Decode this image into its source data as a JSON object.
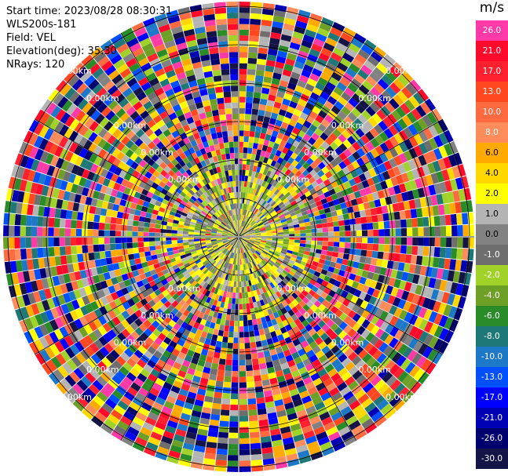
{
  "header": {
    "start_time": "Start time: 2023/08/28 08:30:31",
    "site": "WLS200s-181",
    "field": "Field: VEL",
    "elevation": "Elevation(deg): 35.30",
    "nrays": "NRays: 120"
  },
  "colorbar": {
    "unit": "m/s",
    "levels": [
      {
        "label": "26.0",
        "color": "#ff3aa8"
      },
      {
        "label": "21.0",
        "color": "#ff0a2a"
      },
      {
        "label": "17.0",
        "color": "#ff2030"
      },
      {
        "label": "13.0",
        "color": "#ff4820"
      },
      {
        "label": "10.0",
        "color": "#ff6a40"
      },
      {
        "label": "8.0",
        "color": "#ff8c5a"
      },
      {
        "label": "6.0",
        "color": "#ffaa00"
      },
      {
        "label": "4.0",
        "color": "#ffd800"
      },
      {
        "label": "2.0",
        "color": "#ffff00"
      },
      {
        "label": "1.0",
        "color": "#b4b4b4"
      },
      {
        "label": "0.0",
        "color": "#828282"
      },
      {
        "label": "-1.0",
        "color": "#6e6e6e"
      },
      {
        "label": "-2.0",
        "color": "#a0d22a"
      },
      {
        "label": "-4.0",
        "color": "#6ea028"
      },
      {
        "label": "-6.0",
        "color": "#2a8c28"
      },
      {
        "label": "-8.0",
        "color": "#1e7878"
      },
      {
        "label": "-10.0",
        "color": "#1e78c8"
      },
      {
        "label": "-13.0",
        "color": "#0050ff"
      },
      {
        "label": "-17.0",
        "color": "#0000ff"
      },
      {
        "label": "-21.0",
        "color": "#0000b4"
      },
      {
        "label": "-26.0",
        "color": "#00006e"
      },
      {
        "label": "-30.0",
        "color": "#141446"
      }
    ]
  },
  "chart_data": {
    "type": "heatmap",
    "title": "",
    "field": "VEL",
    "elevation_deg": 35.3,
    "nrays": 120,
    "range_rings_km": [
      {
        "label": "0.00km"
      },
      {
        "label": "0.00km"
      },
      {
        "label": "0.00km"
      },
      {
        "label": "0.00km"
      },
      {
        "label": "0.00km"
      },
      {
        "label": "0.00km"
      }
    ],
    "value_range": [
      -30,
      26
    ]
  }
}
